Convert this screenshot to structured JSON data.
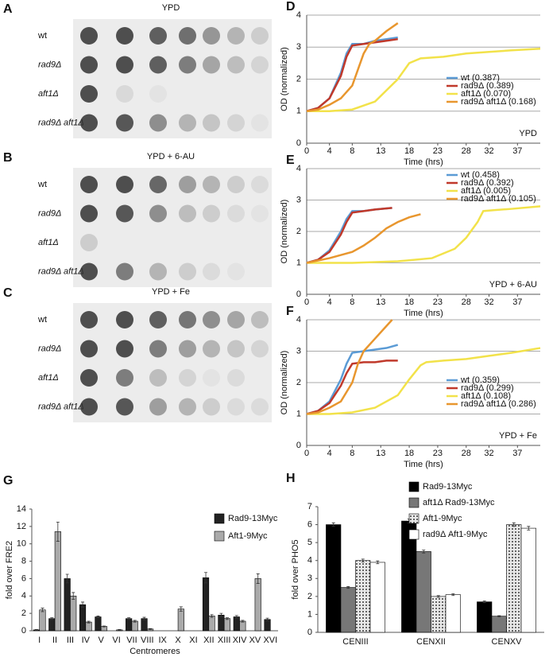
{
  "spot_assays": [
    {
      "letter": "A",
      "title": "YPD",
      "strains": [
        "wt",
        "rad9Δ",
        "aft1Δ",
        "rad9Δ aft1Δ"
      ]
    },
    {
      "letter": "B",
      "title": "YPD + 6-AU",
      "strains": [
        "wt",
        "rad9Δ",
        "aft1Δ",
        "rad9Δ aft1Δ"
      ]
    },
    {
      "letter": "C",
      "title": "YPD + Fe",
      "strains": [
        "wt",
        "rad9Δ",
        "aft1Δ",
        "rad9Δ aft1Δ"
      ]
    }
  ],
  "chart_data": [
    {
      "letter": "D",
      "type": "line",
      "annotation": "YPD",
      "xlabel": "Time (hrs)",
      "ylabel": "OD (normalized)",
      "xlim": [
        0,
        41
      ],
      "xticks": [
        0,
        4,
        8,
        13,
        18,
        23,
        28,
        32,
        37
      ],
      "ylim": [
        0,
        4
      ],
      "yticks": [
        0,
        1,
        2,
        3,
        4
      ],
      "grid": true,
      "legend": "lower right",
      "series": [
        {
          "name": "wt (0.387)",
          "color": "#5b9bd5",
          "x": [
            0,
            2,
            4,
            6,
            7,
            8,
            10,
            12,
            14,
            16
          ],
          "values": [
            1,
            1.1,
            1.4,
            2.2,
            2.8,
            3.1,
            3.1,
            3.2,
            3.25,
            3.3
          ]
        },
        {
          "name": "rad9Δ (0.389)",
          "color": "#c0392b",
          "x": [
            0,
            2,
            4,
            6,
            7,
            8,
            10,
            12,
            14,
            16
          ],
          "values": [
            1,
            1.1,
            1.4,
            2.1,
            2.7,
            3.05,
            3.1,
            3.15,
            3.2,
            3.25
          ]
        },
        {
          "name": "aft1Δ (0.070)",
          "color": "#f2e24a",
          "x": [
            0,
            4,
            8,
            12,
            16,
            18,
            20,
            24,
            28,
            32,
            36,
            41
          ],
          "values": [
            1,
            1,
            1.05,
            1.3,
            2.0,
            2.5,
            2.65,
            2.7,
            2.8,
            2.85,
            2.9,
            2.95
          ]
        },
        {
          "name": "rad9Δ aft1Δ (0.168)",
          "color": "#e8962e",
          "x": [
            0,
            2,
            4,
            6,
            8,
            9,
            10,
            11,
            12,
            14,
            16
          ],
          "values": [
            1,
            1.05,
            1.2,
            1.4,
            1.8,
            2.3,
            2.8,
            3.1,
            3.2,
            3.5,
            3.75
          ]
        }
      ]
    },
    {
      "letter": "E",
      "type": "line",
      "annotation": "YPD + 6-AU",
      "xlabel": "Time (hrs)",
      "ylabel": "OD (normalized)",
      "xlim": [
        0,
        41
      ],
      "xticks": [
        0,
        4,
        8,
        13,
        18,
        23,
        28,
        32,
        37
      ],
      "ylim": [
        0,
        4
      ],
      "yticks": [
        0,
        1,
        2,
        3,
        4
      ],
      "grid": true,
      "legend": "upper right",
      "series": [
        {
          "name": "wt (0.458)",
          "color": "#5b9bd5",
          "x": [
            0,
            2,
            4,
            6,
            7,
            8,
            10,
            12,
            15
          ],
          "values": [
            1,
            1.1,
            1.4,
            2.0,
            2.4,
            2.65,
            2.65,
            2.7,
            2.75
          ]
        },
        {
          "name": "rad9Δ (0.392)",
          "color": "#c0392b",
          "x": [
            0,
            2,
            4,
            6,
            7,
            8,
            10,
            12,
            15
          ],
          "values": [
            1,
            1.1,
            1.35,
            1.9,
            2.3,
            2.6,
            2.65,
            2.7,
            2.75
          ]
        },
        {
          "name": "aft1Δ (0.005)",
          "color": "#f2e24a",
          "x": [
            0,
            8,
            16,
            22,
            26,
            28,
            30,
            31,
            33,
            36,
            41
          ],
          "values": [
            1,
            1,
            1.05,
            1.15,
            1.45,
            1.8,
            2.3,
            2.65,
            2.68,
            2.72,
            2.8
          ]
        },
        {
          "name": "rad9Δ aft1Δ (0.105)",
          "color": "#e8962e",
          "x": [
            0,
            4,
            8,
            10,
            12,
            14,
            16,
            18,
            20
          ],
          "values": [
            1,
            1.15,
            1.35,
            1.55,
            1.8,
            2.1,
            2.3,
            2.45,
            2.55
          ]
        }
      ]
    },
    {
      "letter": "F",
      "type": "line",
      "annotation": "YPD + Fe",
      "xlabel": "Time (hrs)",
      "ylabel": "OD (normalized)",
      "xlim": [
        0,
        41
      ],
      "xticks": [
        0,
        4,
        8,
        13,
        18,
        23,
        28,
        32,
        37
      ],
      "ylim": [
        0,
        4
      ],
      "yticks": [
        0,
        1,
        2,
        3,
        4
      ],
      "grid": true,
      "legend": "lower right",
      "series": [
        {
          "name": "wt (0.359)",
          "color": "#5b9bd5",
          "x": [
            0,
            2,
            4,
            6,
            7,
            8,
            10,
            12,
            14,
            16
          ],
          "values": [
            1,
            1.1,
            1.4,
            2.1,
            2.6,
            2.95,
            3.0,
            3.05,
            3.1,
            3.2
          ]
        },
        {
          "name": "rad9Δ (0.299)",
          "color": "#c0392b",
          "x": [
            0,
            2,
            4,
            6,
            7,
            8,
            10,
            12,
            14,
            16
          ],
          "values": [
            1,
            1.1,
            1.35,
            1.9,
            2.3,
            2.6,
            2.65,
            2.65,
            2.7,
            2.7
          ]
        },
        {
          "name": "aft1Δ (0.108)",
          "color": "#f2e24a",
          "x": [
            0,
            4,
            8,
            12,
            16,
            18,
            20,
            21,
            24,
            28,
            32,
            36,
            41
          ],
          "values": [
            1,
            1,
            1.05,
            1.2,
            1.6,
            2.1,
            2.55,
            2.65,
            2.7,
            2.75,
            2.85,
            2.95,
            3.1
          ]
        },
        {
          "name": "rad9Δ aft1Δ (0.286)",
          "color": "#e8962e",
          "x": [
            0,
            2,
            4,
            6,
            8,
            9,
            10,
            12,
            14,
            15
          ],
          "values": [
            1,
            1.05,
            1.2,
            1.4,
            2.0,
            2.6,
            3.0,
            3.4,
            3.8,
            4.0
          ]
        }
      ]
    },
    {
      "letter": "G",
      "type": "bar",
      "xlabel": "Centromeres",
      "ylabel": "fold over FRE2",
      "categories": [
        "I",
        "II",
        "III",
        "IV",
        "V",
        "VI",
        "VII",
        "VIII",
        "IX",
        "X",
        "XI",
        "XII",
        "XIII",
        "XIV",
        "XV",
        "XVI"
      ],
      "ylim": [
        0,
        14
      ],
      "yticks": [
        0,
        2,
        4,
        6,
        8,
        10,
        12,
        14
      ],
      "legend": "upper right",
      "series": [
        {
          "name": "Rad9-13Myc",
          "color": "#222222",
          "values": [
            0.1,
            1.4,
            6.0,
            3.0,
            1.6,
            0,
            1.4,
            1.4,
            0,
            0,
            0,
            6.1,
            1.8,
            1.6,
            0,
            1.3
          ],
          "errors": [
            0.05,
            0.1,
            0.5,
            0.3,
            0.1,
            0,
            0.1,
            0.15,
            0,
            0,
            0,
            0.6,
            0.2,
            0.15,
            0,
            0.15
          ]
        },
        {
          "name": "Aft1-9Myc",
          "color": "#aaaaaa",
          "values": [
            2.4,
            11.4,
            4.0,
            1.0,
            0.5,
            0.1,
            1.1,
            0.2,
            0,
            2.5,
            0,
            1.7,
            1.4,
            1.1,
            6.0,
            0
          ],
          "errors": [
            0.2,
            1.1,
            0.4,
            0.1,
            0.05,
            0.05,
            0.1,
            0.05,
            0,
            0.25,
            0,
            0.15,
            0.1,
            0.1,
            0.55,
            0
          ]
        }
      ]
    },
    {
      "letter": "H",
      "type": "bar",
      "ylabel": "fold over PHO5",
      "categories": [
        "CENIII",
        "CENXII",
        "CENXV"
      ],
      "ylim": [
        0,
        7
      ],
      "yticks": [
        0,
        1,
        2,
        3,
        4,
        5,
        6,
        7
      ],
      "legend": "upper center",
      "series": [
        {
          "name": "Rad9-13Myc",
          "color": "#000000",
          "values": [
            6.0,
            6.2,
            1.7
          ],
          "errors": [
            0.1,
            0.12,
            0.05
          ]
        },
        {
          "name": "aft1Δ Rad9-13Myc",
          "color": "#777777",
          "values": [
            2.5,
            4.5,
            0.9
          ],
          "errors": [
            0.05,
            0.08,
            0.03
          ]
        },
        {
          "name": "Aft1-9Myc",
          "color": "#cfcfcf",
          "values": [
            4.0,
            2.0,
            6.0
          ],
          "errors": [
            0.08,
            0.05,
            0.1
          ]
        },
        {
          "name": "rad9Δ Aft1-9Myc",
          "color": "#ffffff",
          "values": [
            3.9,
            2.1,
            5.8
          ],
          "errors": [
            0.08,
            0.05,
            0.1
          ]
        }
      ]
    }
  ]
}
